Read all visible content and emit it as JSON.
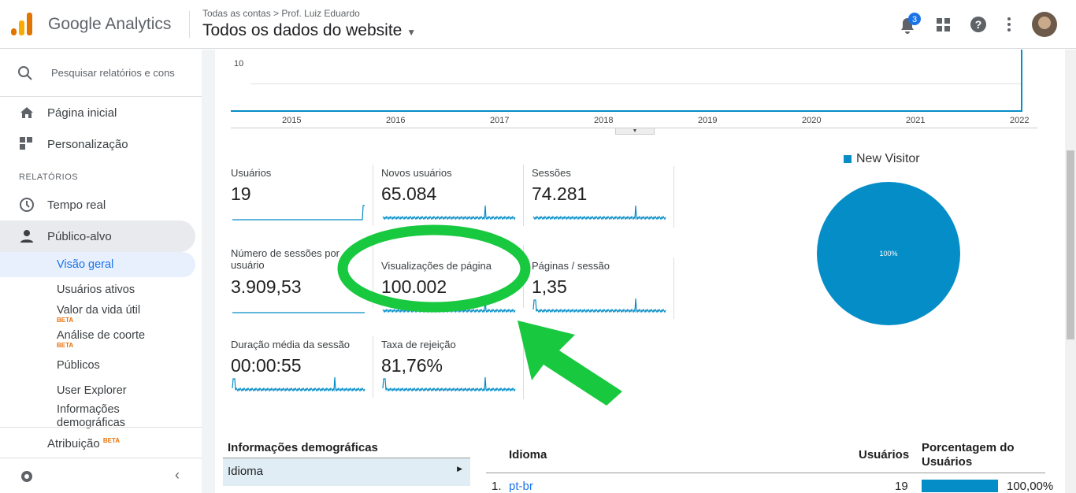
{
  "header": {
    "product": "Google Analytics",
    "breadcrumb": [
      "Todas as contas",
      "Prof. Luiz Eduardo"
    ],
    "view": "Todos os dados do website",
    "notifications": "3"
  },
  "sidebar": {
    "search": "Pesquisar relatórios e cons",
    "home": "Página inicial",
    "customization": "Personalização",
    "section": "RELATÓRIOS",
    "realtime": "Tempo real",
    "audience": "Público-alvo",
    "audience_items": [
      {
        "label": "Visão geral"
      },
      {
        "label": "Usuários ativos"
      },
      {
        "label": "Valor da vida útil",
        "badge": "BETA"
      },
      {
        "label": "Análise de coorte",
        "badge": "BETA"
      },
      {
        "label": "Públicos"
      },
      {
        "label": "User Explorer"
      },
      {
        "label": "Informações demográficas"
      }
    ],
    "attribution": "Atribuição",
    "attribution_badge": "BETA"
  },
  "top_chart": {
    "y_label": "10",
    "years": [
      "2015",
      "2016",
      "2017",
      "2018",
      "2019",
      "2020",
      "2021",
      "2022"
    ]
  },
  "metrics": [
    {
      "label": "Usuários",
      "value": "19"
    },
    {
      "label": "Novos usuários",
      "value": "65.084"
    },
    {
      "label": "Sessões",
      "value": "74.281"
    },
    {
      "label": "Número de sessões por usuário",
      "value": "3.909,53"
    },
    {
      "label": "Visualizações de página",
      "value": "100.002"
    },
    {
      "label": "Páginas / sessão",
      "value": "1,35"
    },
    {
      "label": "Duração média da sessão",
      "value": "00:00:55"
    },
    {
      "label": "Taxa de rejeição",
      "value": "81,76%"
    }
  ],
  "pie": {
    "legend": "New Visitor",
    "label": "100%"
  },
  "demographics": {
    "title": "Informações demográficas",
    "item": "Idioma"
  },
  "table": {
    "headers": [
      "Idioma",
      "Usuários",
      "Porcentagem do Usuários"
    ],
    "rows": [
      [
        "1.",
        "pt-br",
        "19",
        "100,00%"
      ]
    ]
  }
}
